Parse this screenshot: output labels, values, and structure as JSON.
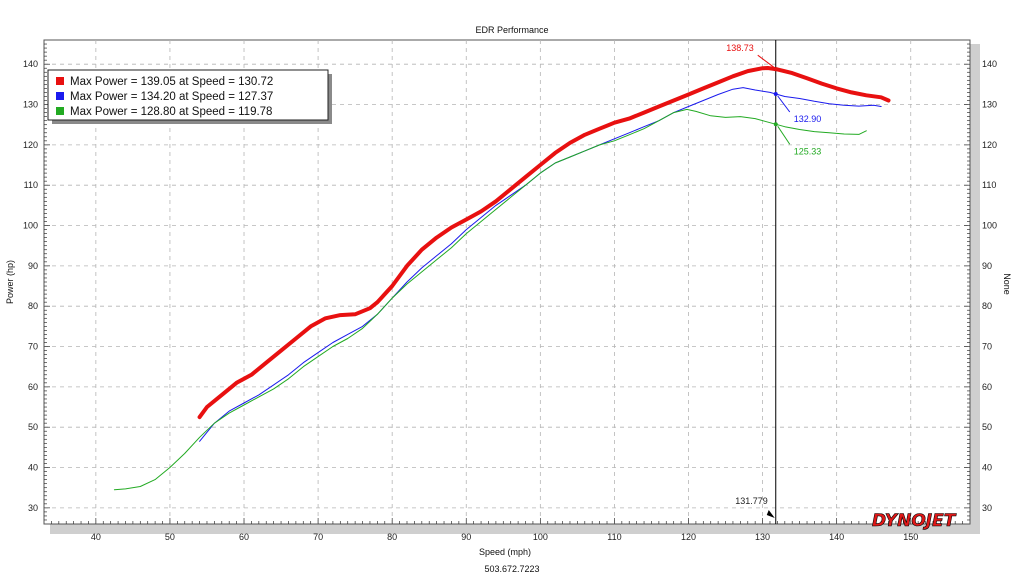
{
  "chart_data": {
    "type": "line",
    "title": "EDR Performance",
    "xlabel": "Speed (mph)",
    "ylabel": "Power (hp)",
    "y2label": "None",
    "footer": "503.672.7223",
    "xlim": [
      33,
      158
    ],
    "ylim": [
      26,
      146
    ],
    "x_ticks": [
      40,
      50,
      60,
      70,
      80,
      90,
      100,
      110,
      120,
      130,
      140,
      150
    ],
    "y_ticks": [
      30,
      40,
      50,
      60,
      70,
      80,
      90,
      100,
      110,
      120,
      130,
      140
    ],
    "grid": true,
    "legend_position": "top-left",
    "cursor": {
      "x": 131.779,
      "label": "131.779"
    },
    "logo": "DYNOJET",
    "series": [
      {
        "legend": "Max Power = 139.05 at Speed = 130.72",
        "color": "#e81010",
        "width": 4,
        "cursor_value": "138.73",
        "points": [
          [
            54,
            52.5
          ],
          [
            55,
            55
          ],
          [
            57,
            58
          ],
          [
            59,
            61
          ],
          [
            61,
            63
          ],
          [
            63,
            66
          ],
          [
            65,
            69
          ],
          [
            67,
            72
          ],
          [
            69,
            75
          ],
          [
            71,
            77
          ],
          [
            73,
            77.8
          ],
          [
            75,
            78
          ],
          [
            77,
            79.5
          ],
          [
            78,
            81
          ],
          [
            80,
            85
          ],
          [
            82,
            90
          ],
          [
            84,
            94
          ],
          [
            86,
            97
          ],
          [
            88,
            99.5
          ],
          [
            90,
            101.5
          ],
          [
            92,
            103.5
          ],
          [
            94,
            106
          ],
          [
            96,
            109
          ],
          [
            98,
            112
          ],
          [
            100,
            115
          ],
          [
            102,
            118
          ],
          [
            104,
            120.5
          ],
          [
            106,
            122.5
          ],
          [
            108,
            124
          ],
          [
            110,
            125.5
          ],
          [
            112,
            126.5
          ],
          [
            114,
            128
          ],
          [
            116,
            129.5
          ],
          [
            118,
            131
          ],
          [
            120,
            132.5
          ],
          [
            122,
            134
          ],
          [
            124,
            135.5
          ],
          [
            126,
            137
          ],
          [
            128,
            138.3
          ],
          [
            130,
            139
          ],
          [
            130.72,
            139.05
          ],
          [
            132,
            138.7
          ],
          [
            134,
            137.8
          ],
          [
            136,
            136.5
          ],
          [
            138,
            135.2
          ],
          [
            140,
            134
          ],
          [
            142,
            133
          ],
          [
            144,
            132.3
          ],
          [
            146,
            131.8
          ],
          [
            147,
            131
          ]
        ]
      },
      {
        "legend": "Max Power = 134.20 at Speed = 127.37",
        "color": "#1a1aee",
        "width": 1,
        "cursor_value": "132.90",
        "points": [
          [
            54,
            46.5
          ],
          [
            56,
            51
          ],
          [
            58,
            54
          ],
          [
            60,
            56
          ],
          [
            62,
            58
          ],
          [
            64,
            60.5
          ],
          [
            66,
            63
          ],
          [
            68,
            66
          ],
          [
            70,
            68.5
          ],
          [
            72,
            71
          ],
          [
            74,
            73
          ],
          [
            76,
            75
          ],
          [
            78,
            78
          ],
          [
            80,
            82
          ],
          [
            82,
            86
          ],
          [
            84,
            89.5
          ],
          [
            86,
            92.5
          ],
          [
            88,
            95.5
          ],
          [
            90,
            99
          ],
          [
            92,
            102
          ],
          [
            94,
            105
          ],
          [
            96,
            107.5
          ],
          [
            98,
            110
          ],
          [
            100,
            113
          ],
          [
            102,
            115.5
          ],
          [
            104,
            117
          ],
          [
            106,
            118.5
          ],
          [
            108,
            120
          ],
          [
            110,
            121.5
          ],
          [
            112,
            123
          ],
          [
            114,
            124.5
          ],
          [
            116,
            126
          ],
          [
            118,
            128
          ],
          [
            120,
            129.5
          ],
          [
            122,
            131
          ],
          [
            124,
            132.5
          ],
          [
            126,
            133.8
          ],
          [
            127.37,
            134.2
          ],
          [
            129,
            133.6
          ],
          [
            131,
            133
          ],
          [
            133,
            132
          ],
          [
            135,
            131.5
          ],
          [
            137,
            130.8
          ],
          [
            139,
            130.2
          ],
          [
            141,
            129.8
          ],
          [
            143,
            129.6
          ],
          [
            145,
            129.8
          ],
          [
            146,
            129.5
          ]
        ]
      },
      {
        "legend": "Max Power = 128.80 at Speed = 119.78",
        "color": "#22aa22",
        "width": 1,
        "cursor_value": "125.33",
        "points": [
          [
            42.5,
            34.5
          ],
          [
            44,
            34.7
          ],
          [
            46,
            35.3
          ],
          [
            48,
            37
          ],
          [
            50,
            40
          ],
          [
            52,
            43.5
          ],
          [
            54,
            47.5
          ],
          [
            56,
            51
          ],
          [
            58,
            53.5
          ],
          [
            60,
            55.5
          ],
          [
            62,
            57.5
          ],
          [
            64,
            59.5
          ],
          [
            66,
            62
          ],
          [
            68,
            65
          ],
          [
            70,
            67.5
          ],
          [
            72,
            70
          ],
          [
            74,
            72
          ],
          [
            76,
            74.5
          ],
          [
            78,
            78
          ],
          [
            80,
            82
          ],
          [
            82,
            85.5
          ],
          [
            84,
            88.5
          ],
          [
            86,
            91.5
          ],
          [
            88,
            94.5
          ],
          [
            90,
            98
          ],
          [
            92,
            101
          ],
          [
            94,
            104
          ],
          [
            96,
            107
          ],
          [
            98,
            110
          ],
          [
            100,
            113
          ],
          [
            102,
            115.5
          ],
          [
            104,
            117
          ],
          [
            106,
            118.5
          ],
          [
            108,
            120
          ],
          [
            110,
            121
          ],
          [
            112,
            122.5
          ],
          [
            114,
            124
          ],
          [
            116,
            126
          ],
          [
            118,
            128
          ],
          [
            119.78,
            128.8
          ],
          [
            121,
            128.3
          ],
          [
            123,
            127.2
          ],
          [
            125,
            126.8
          ],
          [
            127,
            127
          ],
          [
            129,
            126.5
          ],
          [
            131,
            125.5
          ],
          [
            133,
            124.5
          ],
          [
            135,
            123.8
          ],
          [
            137,
            123.3
          ],
          [
            139,
            123
          ],
          [
            141,
            122.7
          ],
          [
            143,
            122.6
          ],
          [
            144,
            123.5
          ]
        ]
      }
    ]
  }
}
